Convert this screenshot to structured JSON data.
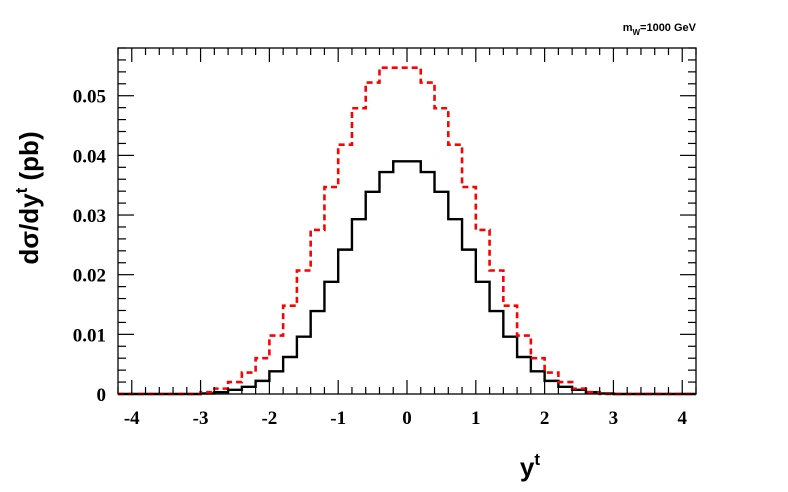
{
  "chart_data": {
    "type": "line",
    "style": "histogram-step",
    "xlim": [
      -4.2,
      4.2
    ],
    "ylim": [
      0,
      0.058
    ],
    "x_ticks": [
      -4,
      -3,
      -2,
      -1,
      0,
      1,
      2,
      3,
      4
    ],
    "x_tick_labels": [
      "-4",
      "-3",
      "-2",
      "-1",
      "0",
      "1",
      "2",
      "3",
      "4"
    ],
    "y_ticks": [
      0,
      0.01,
      0.02,
      0.03,
      0.04,
      0.05
    ],
    "y_tick_labels": [
      "0",
      "0.01",
      "0.02",
      "0.03",
      "0.04",
      "0.05"
    ],
    "xlabel": {
      "base": "y",
      "sup": "t"
    },
    "ylabel": {
      "base": "dσ/dy",
      "sup": "t",
      "suffix": " (pb)"
    },
    "annotation": {
      "base": "m",
      "sub": "W",
      "suffix": "=1000 GeV"
    },
    "bin_edges": [
      -4.2,
      -4.0,
      -3.8,
      -3.6,
      -3.4,
      -3.2,
      -3.0,
      -2.8,
      -2.6,
      -2.4,
      -2.2,
      -2.0,
      -1.8,
      -1.6,
      -1.4,
      -1.2,
      -1.0,
      -0.8,
      -0.6,
      -0.4,
      -0.2,
      0.0,
      0.2,
      0.4,
      0.6,
      0.8,
      1.0,
      1.2,
      1.4,
      1.6,
      1.8,
      2.0,
      2.2,
      2.4,
      2.6,
      2.8,
      3.0,
      3.2,
      3.4,
      3.6,
      3.8,
      4.0,
      4.2
    ],
    "series": [
      {
        "color": "#000000",
        "dash": "solid",
        "values": [
          0,
          0,
          0,
          0,
          0,
          0,
          0.0001,
          0.0003,
          0.0007,
          0.0012,
          0.0022,
          0.0038,
          0.0062,
          0.0096,
          0.0139,
          0.0188,
          0.0242,
          0.0293,
          0.0339,
          0.0372,
          0.039,
          0.039,
          0.0372,
          0.0339,
          0.0293,
          0.0242,
          0.0188,
          0.0139,
          0.0096,
          0.0062,
          0.0038,
          0.0022,
          0.0012,
          0.0007,
          0.0003,
          0.0001,
          0,
          0,
          0,
          0,
          0,
          0
        ]
      },
      {
        "color": "#ff0000",
        "dash": "dashed",
        "values": [
          0,
          0,
          0,
          0,
          0,
          0,
          0.0003,
          0.0009,
          0.002,
          0.0036,
          0.006,
          0.0098,
          0.0148,
          0.0207,
          0.0275,
          0.0347,
          0.0418,
          0.0479,
          0.0522,
          0.0547,
          0.0547,
          0.0547,
          0.0522,
          0.0479,
          0.0418,
          0.0347,
          0.0275,
          0.0207,
          0.0148,
          0.0098,
          0.006,
          0.0036,
          0.002,
          0.0009,
          0.0003,
          0,
          0,
          0,
          0,
          0,
          0,
          0
        ]
      }
    ]
  }
}
